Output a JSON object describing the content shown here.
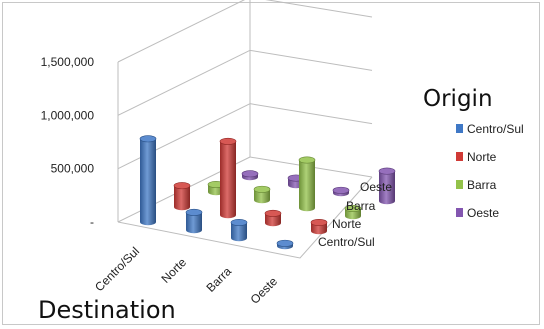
{
  "chart_data": {
    "type": "bar",
    "subtype": "3d-column",
    "xlabel": "Destination",
    "legend_title": "Origin",
    "legend_position": "right",
    "categories": [
      "Centro/Sul",
      "Norte",
      "Barra",
      "Oeste"
    ],
    "depth_categories": [
      "Centro/Sul",
      "Norte",
      "Barra",
      "Oeste"
    ],
    "y_ticks": [
      "-",
      "500,000",
      "1,000,000",
      "1,500,000"
    ],
    "ylim": [
      0,
      1500000
    ],
    "gridlines": true,
    "series": [
      {
        "name": "Centro/Sul",
        "color": "#3f78c6",
        "values": [
          780000,
          165000,
          145000,
          25000
        ]
      },
      {
        "name": "Norte",
        "color": "#d03a36",
        "values": [
          200000,
          690000,
          90000,
          80000
        ]
      },
      {
        "name": "Barra",
        "color": "#93c24a",
        "values": [
          70000,
          100000,
          450000,
          70000
        ]
      },
      {
        "name": "Oeste",
        "color": "#8356b0",
        "values": [
          30000,
          65000,
          25000,
          280000
        ]
      }
    ]
  }
}
